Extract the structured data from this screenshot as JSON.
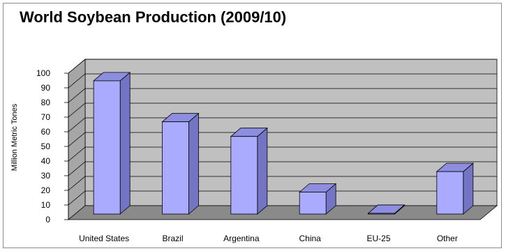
{
  "chart_data": {
    "type": "bar",
    "title": "World Soybean Production (2009/10)",
    "xlabel": "",
    "ylabel": "Million Metric Tones",
    "categories": [
      "United States",
      "Brazil",
      "Argentina",
      "China",
      "EU-25",
      "Other"
    ],
    "values": [
      91,
      63,
      53,
      15,
      0.5,
      29
    ],
    "ylim": [
      0,
      100
    ],
    "yticks": [
      "0",
      "10",
      "20",
      "30",
      "40",
      "50",
      "60",
      "70",
      "80",
      "90",
      "100"
    ],
    "grid": true,
    "legend": "none",
    "style": "3d-column",
    "colors": {
      "bar_front": "#aaaaff",
      "bar_side": "#7474c4",
      "bar_top": "#8e8ee0",
      "bar_edge": "#000000",
      "wall": "#c0c0c0",
      "floor": "#8a8a8a",
      "gridline": "#000000"
    }
  }
}
